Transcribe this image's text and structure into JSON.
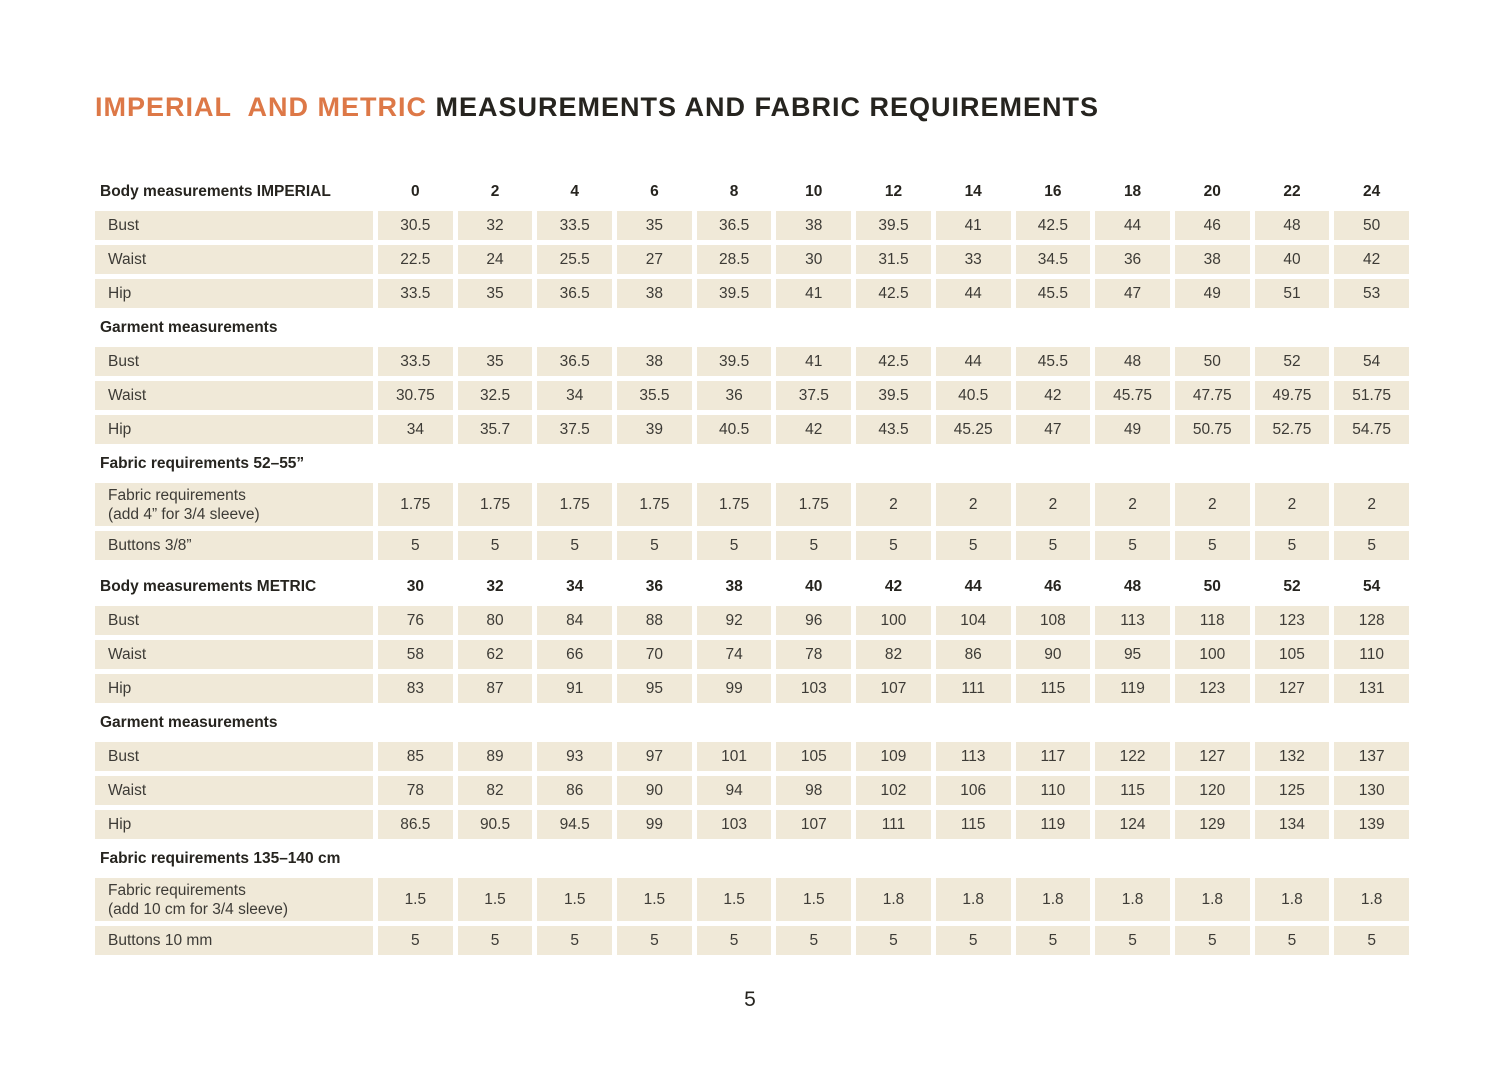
{
  "title": {
    "accent": "IMPERIAL  AND METRIC ",
    "rest": "MEASUREMENTS AND FABRIC REQUIREMENTS"
  },
  "page_number": "5",
  "colors": {
    "accent_orange": "#DD7847",
    "cell_beige": "#F0E9D8",
    "heading_text": "#26241F",
    "body_text": "#3D3B36"
  },
  "table": {
    "sections": [
      {
        "header": "Body measurements IMPERIAL",
        "header_values": [
          "0",
          "2",
          "4",
          "6",
          "8",
          "10",
          "12",
          "14",
          "16",
          "18",
          "20",
          "22",
          "24"
        ],
        "rows": [
          {
            "label_lines": [
              "Bust"
            ],
            "values": [
              "30.5",
              "32",
              "33.5",
              "35",
              "36.5",
              "38",
              "39.5",
              "41",
              "42.5",
              "44",
              "46",
              "48",
              "50"
            ]
          },
          {
            "label_lines": [
              "Waist"
            ],
            "values": [
              "22.5",
              "24",
              "25.5",
              "27",
              "28.5",
              "30",
              "31.5",
              "33",
              "34.5",
              "36",
              "38",
              "40",
              "42"
            ]
          },
          {
            "label_lines": [
              "Hip"
            ],
            "values": [
              "33.5",
              "35",
              "36.5",
              "38",
              "39.5",
              "41",
              "42.5",
              "44",
              "45.5",
              "47",
              "49",
              "51",
              "53"
            ]
          }
        ]
      },
      {
        "header": "Garment measurements",
        "header_values": [],
        "rows": [
          {
            "label_lines": [
              "Bust"
            ],
            "values": [
              "33.5",
              "35",
              "36.5",
              "38",
              "39.5",
              "41",
              "42.5",
              "44",
              "45.5",
              "48",
              "50",
              "52",
              "54"
            ]
          },
          {
            "label_lines": [
              "Waist"
            ],
            "values": [
              "30.75",
              "32.5",
              "34",
              "35.5",
              "36",
              "37.5",
              "39.5",
              "40.5",
              "42",
              "45.75",
              "47.75",
              "49.75",
              "51.75"
            ]
          },
          {
            "label_lines": [
              "Hip"
            ],
            "values": [
              "34",
              "35.7",
              "37.5",
              "39",
              "40.5",
              "42",
              "43.5",
              "45.25",
              "47",
              "49",
              "50.75",
              "52.75",
              "54.75"
            ]
          }
        ]
      },
      {
        "header": "Fabric requirements 52–55”",
        "header_values": [],
        "rows": [
          {
            "label_lines": [
              "Fabric requirements",
              "(add 4” for 3/4 sleeve)"
            ],
            "values": [
              "1.75",
              "1.75",
              "1.75",
              "1.75",
              "1.75",
              "1.75",
              "2",
              "2",
              "2",
              "2",
              "2",
              "2",
              "2"
            ]
          },
          {
            "label_lines": [
              "Buttons 3/8”"
            ],
            "values": [
              "5",
              "5",
              "5",
              "5",
              "5",
              "5",
              "5",
              "5",
              "5",
              "5",
              "5",
              "5",
              "5"
            ]
          }
        ]
      },
      {
        "header": "Body measurements METRIC",
        "header_values": [
          "30",
          "32",
          "34",
          "36",
          "38",
          "40",
          "42",
          "44",
          "46",
          "48",
          "50",
          "52",
          "54"
        ],
        "gap_before": true,
        "rows": [
          {
            "label_lines": [
              "Bust"
            ],
            "values": [
              "76",
              "80",
              "84",
              "88",
              "92",
              "96",
              "100",
              "104",
              "108",
              "113",
              "118",
              "123",
              "128"
            ]
          },
          {
            "label_lines": [
              "Waist"
            ],
            "values": [
              "58",
              "62",
              "66",
              "70",
              "74",
              "78",
              "82",
              "86",
              "90",
              "95",
              "100",
              "105",
              "110"
            ]
          },
          {
            "label_lines": [
              "Hip"
            ],
            "values": [
              "83",
              "87",
              "91",
              "95",
              "99",
              "103",
              "107",
              "111",
              "115",
              "119",
              "123",
              "127",
              "131"
            ]
          }
        ]
      },
      {
        "header": "Garment measurements",
        "header_values": [],
        "rows": [
          {
            "label_lines": [
              "Bust"
            ],
            "values": [
              "85",
              "89",
              "93",
              "97",
              "101",
              "105",
              "109",
              "113",
              "117",
              "122",
              "127",
              "132",
              "137"
            ]
          },
          {
            "label_lines": [
              "Waist"
            ],
            "values": [
              "78",
              "82",
              "86",
              "90",
              "94",
              "98",
              "102",
              "106",
              "110",
              "115",
              "120",
              "125",
              "130"
            ]
          },
          {
            "label_lines": [
              "Hip"
            ],
            "values": [
              "86.5",
              "90.5",
              "94.5",
              "99",
              "103",
              "107",
              "111",
              "115",
              "119",
              "124",
              "129",
              "134",
              "139"
            ]
          }
        ]
      },
      {
        "header": "Fabric requirements 135–140 cm",
        "header_values": [],
        "rows": [
          {
            "label_lines": [
              "Fabric requirements",
              "(add 10 cm for 3/4 sleeve)"
            ],
            "values": [
              "1.5",
              "1.5",
              "1.5",
              "1.5",
              "1.5",
              "1.5",
              "1.8",
              "1.8",
              "1.8",
              "1.8",
              "1.8",
              "1.8",
              "1.8"
            ]
          },
          {
            "label_lines": [
              "Buttons 10 mm"
            ],
            "values": [
              "5",
              "5",
              "5",
              "5",
              "5",
              "5",
              "5",
              "5",
              "5",
              "5",
              "5",
              "5",
              "5"
            ]
          }
        ]
      }
    ]
  }
}
